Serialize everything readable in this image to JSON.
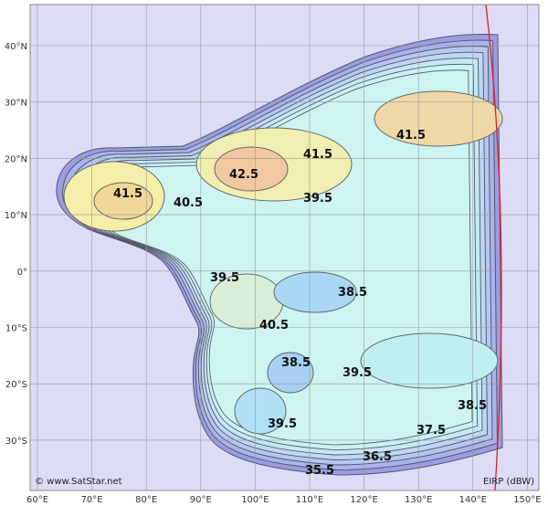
{
  "x_labels": [
    "60°E",
    "70°E",
    "80°E",
    "90°E",
    "100°E",
    "110°E",
    "120°E",
    "130°E",
    "140°E",
    "150°E"
  ],
  "y_labels": [
    "40°N",
    "30°N",
    "20°N",
    "10°N",
    "0°",
    "10°S",
    "20°S",
    "30°S"
  ],
  "contour_labels": [
    "41.5",
    "40.5",
    "42.5",
    "41.5",
    "39.5",
    "41.5",
    "39.5",
    "38.5",
    "40.5",
    "38.5",
    "39.5",
    "39.5",
    "38.5",
    "37.5",
    "36.5",
    "35.5"
  ],
  "credit": "© www.SatStar.net",
  "unit_label": "EIRP (dBW)"
}
